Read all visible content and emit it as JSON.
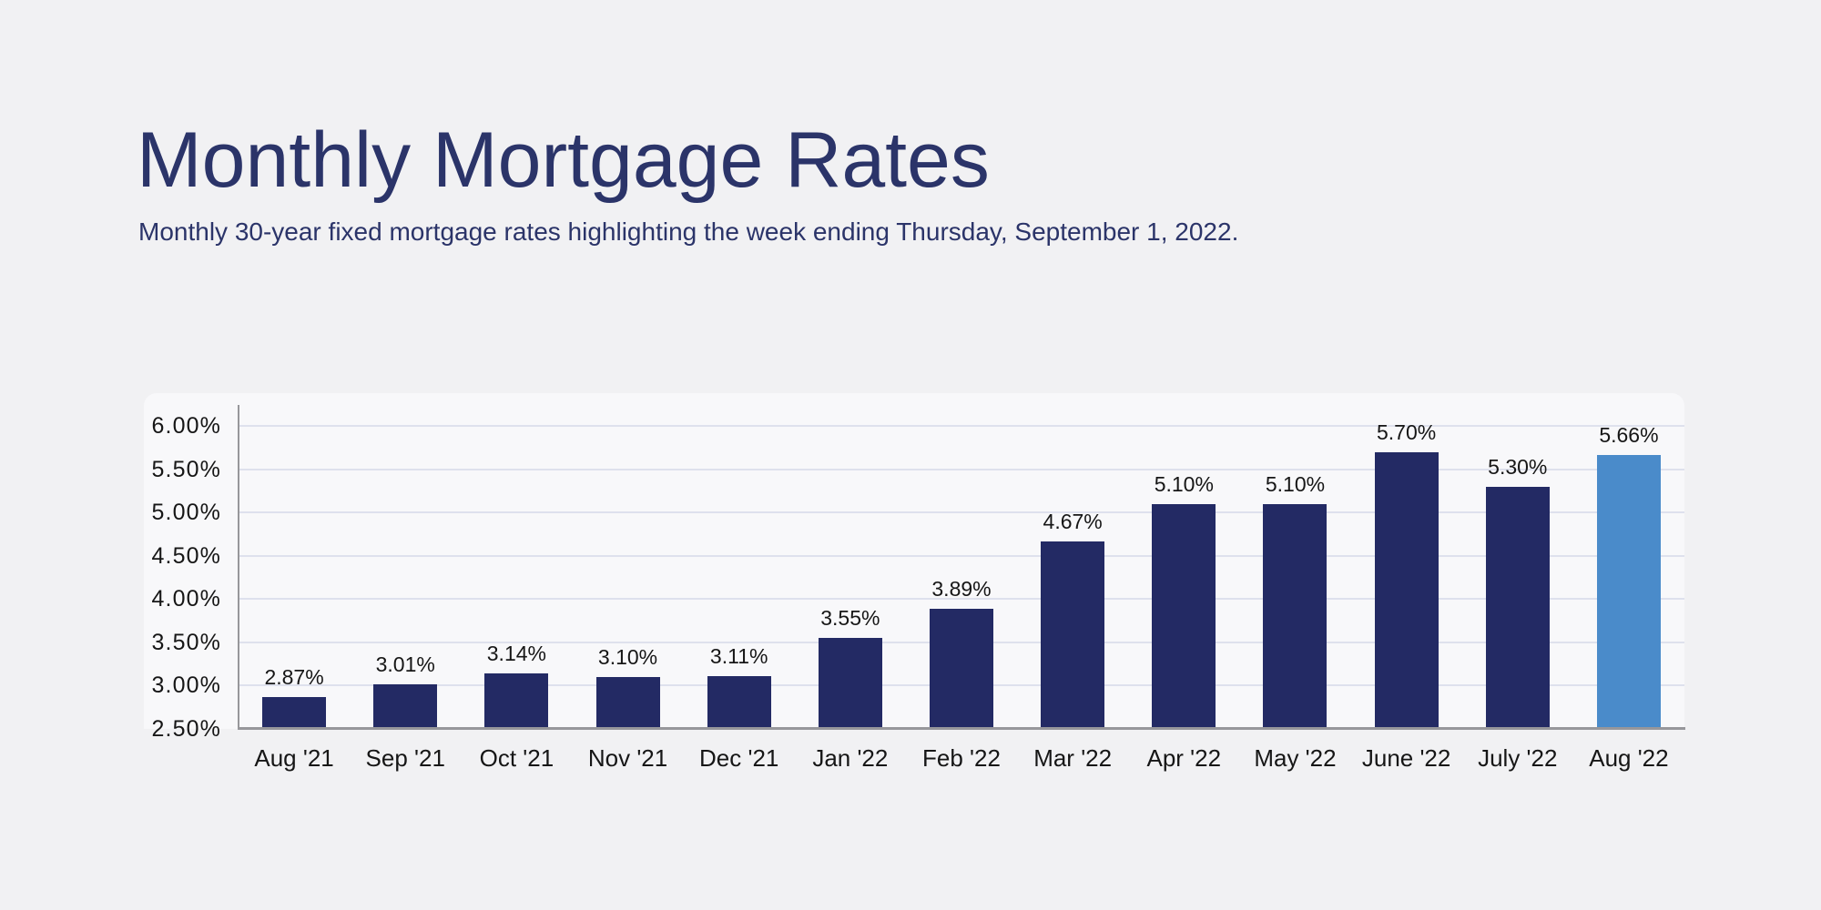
{
  "header": {
    "title": "Monthly Mortgage Rates",
    "subtitle": "Monthly 30-year fixed mortgage rates highlighting the week ending Thursday, September 1, 2022."
  },
  "colors": {
    "page_bg": "#F1F1F3",
    "panel_bg": "#F8F8FA",
    "title_text": "#2B3469",
    "tick_text": "#161616",
    "bar": "#232A64",
    "bar_highlight": "#4A8BCA",
    "gridline": "#DEE1ED",
    "axis_line": "#97979B"
  },
  "chart_data": {
    "type": "bar",
    "title": "Monthly Mortgage Rates",
    "subtitle": "Monthly 30-year fixed mortgage rates highlighting the week ending Thursday, September 1, 2022.",
    "xlabel": "",
    "ylabel": "",
    "categories": [
      "Aug '21",
      "Sep '21",
      "Oct '21",
      "Nov '21",
      "Dec '21",
      "Jan '22",
      "Feb '22",
      "Mar '22",
      "Apr '22",
      "May '22",
      "June '22",
      "July '22",
      "Aug '22"
    ],
    "values": [
      2.87,
      3.01,
      3.14,
      3.1,
      3.11,
      3.55,
      3.89,
      4.67,
      5.1,
      5.1,
      5.7,
      5.3,
      5.66
    ],
    "value_labels": [
      "2.87%",
      "3.01%",
      "3.14%",
      "3.10%",
      "3.11%",
      "3.55%",
      "3.89%",
      "4.67%",
      "5.10%",
      "5.10%",
      "5.70%",
      "5.30%",
      "5.66%"
    ],
    "highlight_index": 12,
    "highlight_category": "Aug '22",
    "y_ticks": [
      {
        "value": 6.0,
        "label": "6.00%"
      },
      {
        "value": 5.5,
        "label": "5.50%"
      },
      {
        "value": 5.0,
        "label": "5.00%"
      },
      {
        "value": 4.5,
        "label": "4.50%"
      },
      {
        "value": 4.0,
        "label": "4.00%"
      },
      {
        "value": 3.5,
        "label": "3.50%"
      },
      {
        "value": 3.0,
        "label": "3.00%"
      },
      {
        "value": 2.5,
        "label": "2.50%"
      }
    ],
    "ylim": [
      2.5,
      6.0
    ],
    "grid": true,
    "legend": false
  }
}
